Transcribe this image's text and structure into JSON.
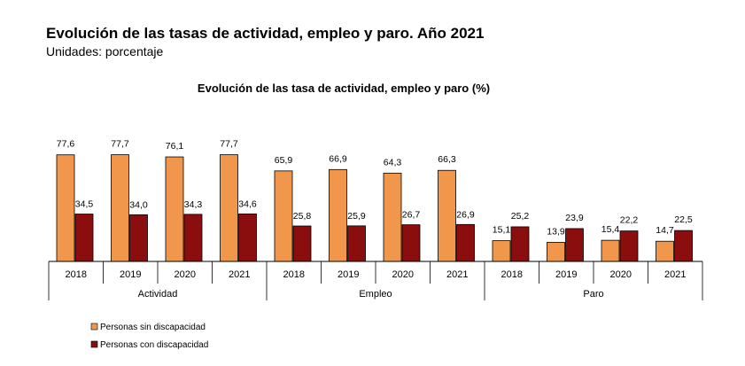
{
  "header": {
    "title": "Evolución de las tasas de actividad, empleo y paro. Año 2021",
    "subtitle": "Unidades: porcentaje"
  },
  "colors": {
    "sin_discapacidad": "#F0974C",
    "con_discapacidad": "#8B0E0E",
    "bar_stroke": "#000000"
  },
  "chart_data": {
    "type": "bar",
    "title": "Evolución de las tasa de actividad, empleo y paro  (%)",
    "xlabel": "",
    "ylabel": "",
    "groups": [
      "Actividad",
      "Empleo",
      "Paro"
    ],
    "categories": [
      "2018",
      "2019",
      "2020",
      "2021"
    ],
    "series": [
      {
        "name": "Personas sin discapacidad",
        "values": [
          [
            77.6,
            77.7,
            76.1,
            77.7
          ],
          [
            65.9,
            66.9,
            64.3,
            66.3
          ],
          [
            15.1,
            13.9,
            15.4,
            14.7
          ]
        ]
      },
      {
        "name": "Personas con discapacidad",
        "values": [
          [
            34.5,
            34.0,
            34.3,
            34.6
          ],
          [
            25.8,
            25.9,
            26.7,
            26.9
          ],
          [
            25.2,
            23.9,
            22.2,
            22.5
          ]
        ]
      }
    ],
    "value_labels": [
      [
        [
          "77,6",
          "77,7",
          "76,1",
          "77,7"
        ],
        [
          "65,9",
          "66,9",
          "64,3",
          "66,3"
        ],
        [
          "15,1",
          "13,9",
          "15,4",
          "14,7"
        ]
      ],
      [
        [
          "34,5",
          "34,0",
          "34,3",
          "34,6"
        ],
        [
          "25,8",
          "25,9",
          "26,7",
          "26,9"
        ],
        [
          "25,2",
          "23,9",
          "22,2",
          "22,5"
        ]
      ]
    ],
    "ylim": [
      0,
      100
    ],
    "grid": false,
    "legend": "bottom-left"
  }
}
